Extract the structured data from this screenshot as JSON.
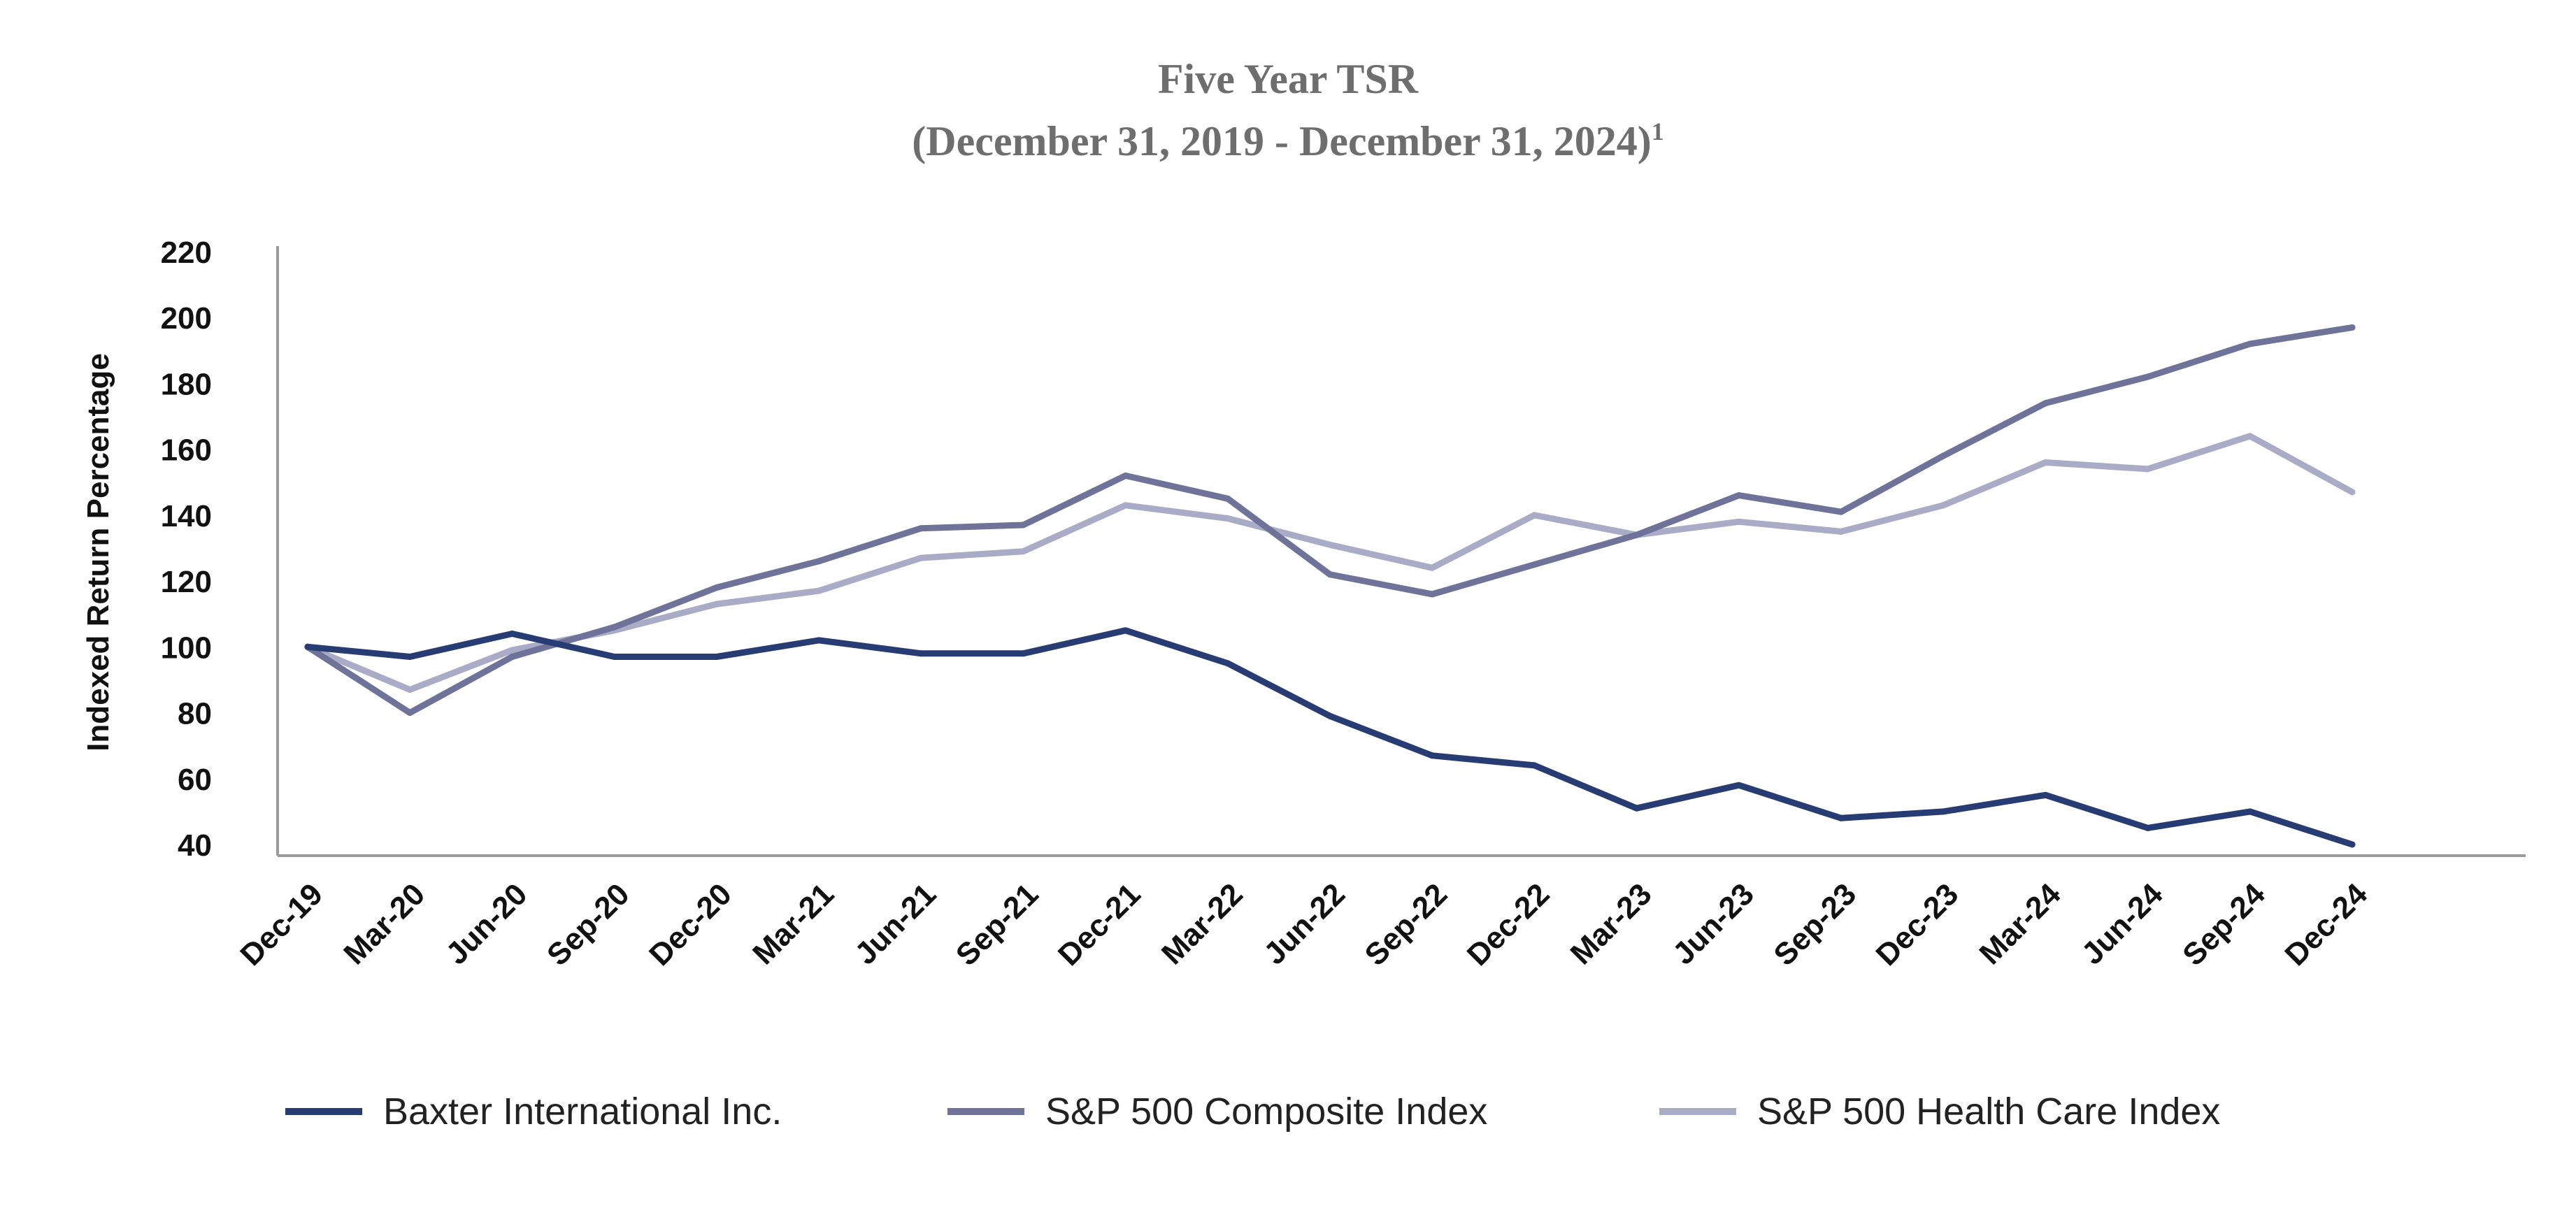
{
  "chart_data": {
    "type": "line",
    "title": "Five Year TSR",
    "subtitle": "(December 31, 2019 - December 31, 2024)",
    "subtitle_footnote": "1",
    "ylabel": "Indexed Return Percentage",
    "xlabel": "",
    "ylim": [
      40,
      220
    ],
    "yticks": [
      40,
      60,
      80,
      100,
      120,
      140,
      160,
      180,
      200,
      220
    ],
    "categories": [
      "Dec-19",
      "Mar-20",
      "Jun-20",
      "Sep-20",
      "Dec-20",
      "Mar-21",
      "Jun-21",
      "Sep-21",
      "Dec-21",
      "Mar-22",
      "Jun-22",
      "Sep-22",
      "Dec-22",
      "Mar-23",
      "Jun-23",
      "Sep-23",
      "Dec-23",
      "Mar-24",
      "Jun-24",
      "Sep-24",
      "Dec-24"
    ],
    "grid": false,
    "legend_position": "bottom",
    "series": [
      {
        "name": "Baxter International Inc.",
        "color": "#263c73",
        "values": [
          100,
          97,
          104,
          97,
          97,
          102,
          98,
          98,
          105,
          95,
          79,
          67,
          64,
          51,
          58,
          48,
          50,
          55,
          45,
          50,
          40
        ]
      },
      {
        "name": "S&P 500 Composite Index",
        "color": "#6f7399",
        "values": [
          100,
          80,
          97,
          106,
          118,
          126,
          136,
          137,
          152,
          145,
          122,
          116,
          125,
          134,
          146,
          141,
          158,
          174,
          182,
          192,
          197
        ]
      },
      {
        "name": "S&P 500 Health Care Index",
        "color": "#a9abc7",
        "values": [
          100,
          87,
          99,
          105,
          113,
          117,
          127,
          129,
          143,
          139,
          131,
          124,
          140,
          134,
          138,
          135,
          143,
          156,
          154,
          164,
          147
        ]
      }
    ]
  }
}
